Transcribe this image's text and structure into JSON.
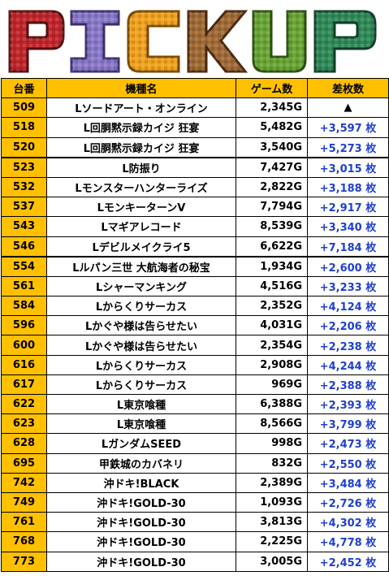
{
  "banner": {
    "title": "PICKUP"
  },
  "table": {
    "headers": [
      "台番",
      "機種名",
      "ゲーム数",
      "差枚数"
    ],
    "rows": [
      {
        "num": "509",
        "name": "Lソードアート・オンライン",
        "games": "2,345G",
        "diff": "▲",
        "neg": true,
        "thick": false
      },
      {
        "num": "518",
        "name": "L回胴黙示録カイジ 狂宴",
        "games": "5,482G",
        "diff": "+3,597 枚",
        "neg": false,
        "thick": false
      },
      {
        "num": "520",
        "name": "L回胴黙示録カイジ 狂宴",
        "games": "3,540G",
        "diff": "+5,273 枚",
        "neg": false,
        "thick": false
      },
      {
        "num": "523",
        "name": "L防振り",
        "games": "7,427G",
        "diff": "+3,015 枚",
        "neg": false,
        "thick": true
      },
      {
        "num": "532",
        "name": "Lモンスターハンターライズ",
        "games": "2,822G",
        "diff": "+3,188 枚",
        "neg": false,
        "thick": false
      },
      {
        "num": "537",
        "name": "LモンキーターンV",
        "games": "7,794G",
        "diff": "+2,917 枚",
        "neg": false,
        "thick": false
      },
      {
        "num": "543",
        "name": "Lマギアレコード",
        "games": "8,539G",
        "diff": "+3,340 枚",
        "neg": false,
        "thick": false
      },
      {
        "num": "546",
        "name": "Lデビルメイクライ5",
        "games": "6,622G",
        "diff": "+7,184 枚",
        "neg": false,
        "thick": false
      },
      {
        "num": "554",
        "name": "Lルパン三世 大航海者の秘宝",
        "games": "1,934G",
        "diff": "+2,600 枚",
        "neg": false,
        "thick": true
      },
      {
        "num": "561",
        "name": "Lシャーマンキング",
        "games": "4,516G",
        "diff": "+3,233 枚",
        "neg": false,
        "thick": false
      },
      {
        "num": "584",
        "name": "Lからくりサーカス",
        "games": "2,352G",
        "diff": "+4,124 枚",
        "neg": false,
        "thick": false
      },
      {
        "num": "596",
        "name": "Lかぐや様は告らせたい",
        "games": "4,031G",
        "diff": "+2,206 枚",
        "neg": false,
        "thick": false
      },
      {
        "num": "600",
        "name": "Lかぐや様は告らせたい",
        "games": "2,354G",
        "diff": "+2,238 枚",
        "neg": false,
        "thick": false
      },
      {
        "num": "616",
        "name": "Lからくりサーカス",
        "games": "2,908G",
        "diff": "+4,244 枚",
        "neg": false,
        "thick": false
      },
      {
        "num": "617",
        "name": "Lからくりサーカス",
        "games": "969G",
        "diff": "+2,388 枚",
        "neg": false,
        "thick": false
      },
      {
        "num": "622",
        "name": "L東京喰種",
        "games": "6,388G",
        "diff": "+2,393 枚",
        "neg": false,
        "thick": false
      },
      {
        "num": "623",
        "name": "L東京喰種",
        "games": "8,566G",
        "diff": "+3,799 枚",
        "neg": false,
        "thick": false
      },
      {
        "num": "628",
        "name": "LガンダムSEED",
        "games": "998G",
        "diff": "+2,473 枚",
        "neg": false,
        "thick": false
      },
      {
        "num": "695",
        "name": "甲鉄城のカバネリ",
        "games": "832G",
        "diff": "+2,550 枚",
        "neg": false,
        "thick": false
      },
      {
        "num": "742",
        "name": "沖ドキ!BLACK",
        "games": "2,389G",
        "diff": "+3,484 枚",
        "neg": false,
        "thick": false
      },
      {
        "num": "749",
        "name": "沖ドキ!GOLD-30",
        "games": "1,093G",
        "diff": "+2,726 枚",
        "neg": false,
        "thick": false
      },
      {
        "num": "761",
        "name": "沖ドキ!GOLD-30",
        "games": "3,813G",
        "diff": "+4,302 枚",
        "neg": false,
        "thick": false
      },
      {
        "num": "768",
        "name": "沖ドキ!GOLD-30",
        "games": "2,225G",
        "diff": "+4,778 枚",
        "neg": false,
        "thick": false
      },
      {
        "num": "773",
        "name": "沖ドキ!GOLD-30",
        "games": "3,005G",
        "diff": "+2,452 枚",
        "neg": false,
        "thick": false
      }
    ]
  },
  "colors": {
    "header_bg": "#ffc000",
    "positive_text": "#1f3fd0",
    "letter_p": "#c0262b",
    "letter_i": "#8a78c8",
    "letter_c": "#f0a21e",
    "letter_k": "#a06a36",
    "letter_u": "#6aa534",
    "letter_p2": "#2f8a58"
  }
}
